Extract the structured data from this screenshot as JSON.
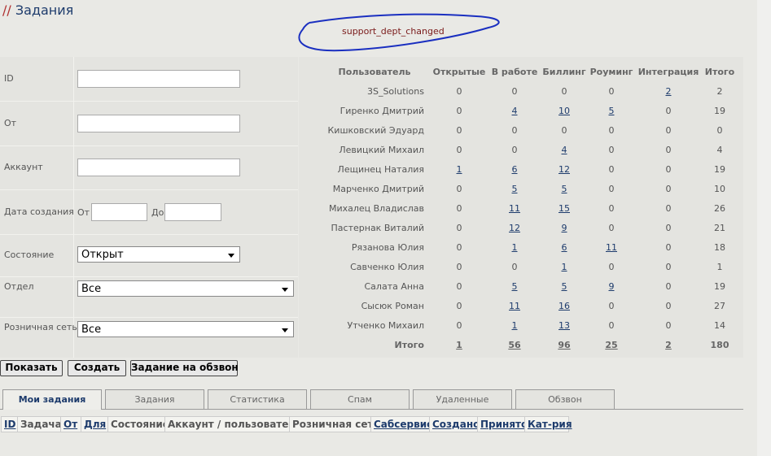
{
  "header": {
    "prefix": "//",
    "title": "Задания"
  },
  "notice": "support_dept_changed",
  "form": {
    "fields": [
      {
        "label": "ID"
      },
      {
        "label": "От"
      },
      {
        "label": "Аккаунт"
      },
      {
        "label": "Дата создания",
        "from": "От",
        "to": "До"
      },
      {
        "label": "Состояние",
        "value": "Открыт"
      },
      {
        "label": "Отдел",
        "value": "Все"
      },
      {
        "label": "Розничная сеть",
        "value": "Все"
      }
    ]
  },
  "stats": {
    "columns": [
      "Пользователь",
      "Открытые",
      "В работе",
      "Биллинг",
      "Роуминг",
      "Интеграция",
      "Итого"
    ],
    "rows": [
      [
        "3S_Solutions",
        0,
        0,
        0,
        0,
        2,
        2
      ],
      [
        "Гиренко Дмитрий",
        0,
        4,
        10,
        5,
        0,
        19
      ],
      [
        "Кишковский Эдуард",
        0,
        0,
        0,
        0,
        0,
        0
      ],
      [
        "Левицкий Михаил",
        0,
        0,
        4,
        0,
        0,
        4
      ],
      [
        "Лещинец Наталия",
        1,
        6,
        12,
        0,
        0,
        19
      ],
      [
        "Марченко Дмитрий",
        0,
        5,
        5,
        0,
        0,
        10
      ],
      [
        "Михалец Владислав",
        0,
        11,
        15,
        0,
        0,
        26
      ],
      [
        "Пастернак Виталий",
        0,
        12,
        9,
        0,
        0,
        21
      ],
      [
        "Рязанова Юлия",
        0,
        1,
        6,
        11,
        0,
        18
      ],
      [
        "Савченко Юлия",
        0,
        0,
        1,
        0,
        0,
        1
      ],
      [
        "Салата Анна",
        0,
        5,
        5,
        9,
        0,
        19
      ],
      [
        "Сысюк Роман",
        0,
        11,
        16,
        0,
        0,
        27
      ],
      [
        "Утченко Михаил",
        0,
        1,
        13,
        0,
        0,
        14
      ]
    ],
    "total": [
      "Итого",
      1,
      56,
      96,
      25,
      2,
      180
    ]
  },
  "buttons": [
    "Показать",
    "Создать",
    "Задание на обзвон"
  ],
  "tabs": [
    "Мои задания",
    "Задания",
    "Статистика",
    "Спам",
    "Удаленные",
    "Обзвон"
  ],
  "list_columns": [
    {
      "label": "ID",
      "sortable": true
    },
    {
      "label": "Задача",
      "sortable": false
    },
    {
      "label": "От",
      "sortable": true
    },
    {
      "label": "Для",
      "sortable": true
    },
    {
      "label": "Состояние",
      "sortable": false
    },
    {
      "label": "Аккаунт / пользователь",
      "sortable": false
    },
    {
      "label": "Розничная сеть",
      "sortable": false
    },
    {
      "label": "Сабсервис",
      "sortable": true
    },
    {
      "label": "Создано",
      "sortable": true
    },
    {
      "label": "Принято",
      "sortable": true
    },
    {
      "label": "Кат-рия",
      "sortable": true
    }
  ]
}
